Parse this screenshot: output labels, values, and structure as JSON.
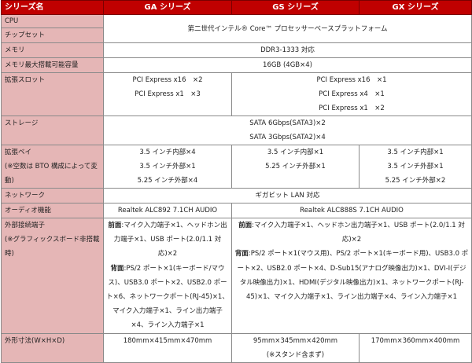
{
  "header": {
    "label": "シリーズ名",
    "ga": "GA シリーズ",
    "gs": "GS シリーズ",
    "gx": "GX シリーズ"
  },
  "colors": {
    "header_bg": "#c00000",
    "label_bg": "#e5b6b6",
    "border": "#8a8a8a"
  },
  "rows": {
    "cpu": {
      "label": "CPU"
    },
    "chipset": {
      "label": "チップセット"
    },
    "platform": "第二世代インテル® Core™ プロセッサーベースプラットフォーム",
    "memory": {
      "label": "メモリ",
      "value": "DDR3-1333 対応"
    },
    "max_memory": {
      "label": "メモリ最大搭載可能容量",
      "value": "16GB (4GB×4)"
    },
    "slots": {
      "label": "拡張スロット",
      "ga": [
        "PCI Express x16　×2",
        "PCI Express x1　×3"
      ],
      "gs_gx": [
        "PCI Express x16　×1",
        "PCI Express x4　×1",
        "PCI Express x1　×2"
      ]
    },
    "storage": {
      "label": "ストレージ",
      "value": [
        "SATA 6Gbps(SATA3)×2",
        "SATA 3Gbps(SATA2)×4"
      ]
    },
    "bays": {
      "label": [
        "拡張ベイ",
        "(※空数は BTO 構成によって変動)"
      ],
      "ga": [
        "3.5 インチ内部×4",
        "3.5 インチ外部×1",
        "5.25 インチ外部×4"
      ],
      "gs": [
        "3.5 インチ内部×1",
        "5.25 インチ外部×1"
      ],
      "gx": [
        "3.5 インチ内部×1",
        "3.5 インチ外部×1",
        "5.25 インチ外部×2"
      ]
    },
    "network": {
      "label": "ネットワーク",
      "value": "ギガビット LAN 対応"
    },
    "audio": {
      "label": "オーディオ機能",
      "ga": "Realtek ALC892 7.1CH AUDIO",
      "gs_gx": "Realtek ALC888S 7.1CH AUDIO"
    },
    "ports": {
      "label": [
        "外部接続端子",
        "(※グラフィックスボード非搭載時)"
      ],
      "front_label": "前面",
      "rear_label": "背面",
      "ga_front": ":マイク入力端子×1、ヘッドホン出力端子×1、USB ポート(2.0/1.1 対応)×2",
      "ga_rear": ":PS/2 ポート×1(キーボード/マウス)、USB3.0 ポート×2、USB2.0 ポート×6、ネットワークポート(RJ-45)×1、マイク入力端子×1、ライン出力端子×4、ライン入力端子×1",
      "gs_gx_front": ":マイク入力端子×1、ヘッドホン出力端子×1、USB ポート(2.0/1.1 対応)×2",
      "gs_gx_rear": ":PS/2 ポート×1(マウス用)、PS/2 ポート×1(キーボード用)、USB3.0 ポート×2、USB2.0 ポート×4、D-Sub15(アナログ映像出力)×1、DVI-I(デジタル映像出力)×1、HDMI(デジタル映像出力)×1、ネットワークポート(RJ-45)×1、マイク入力端子×1、ライン出力端子×4、ライン入力端子×1"
    },
    "dimensions": {
      "label": "外形寸法(W×H×D)",
      "ga": "180mm×415mm×470mm",
      "gs": [
        "95mm×345mm×420mm",
        "(※スタンド含まず)"
      ],
      "gx": "170mm×360mm×400mm"
    }
  }
}
